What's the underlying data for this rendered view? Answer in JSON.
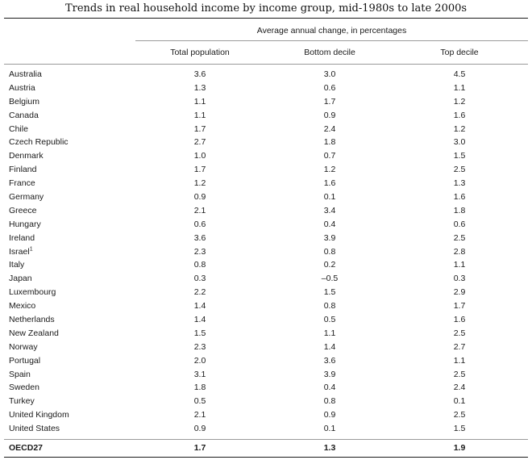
{
  "title": "Trends in real household income by income group, mid-1980s to late 2000s",
  "span_header": "Average annual change, in percentages",
  "columns": [
    "Total population",
    "Bottom decile",
    "Top decile"
  ],
  "rows": [
    {
      "country": "Australia",
      "values": [
        "3.6",
        "3.0",
        "4.5"
      ]
    },
    {
      "country": "Austria",
      "values": [
        "1.3",
        "0.6",
        "1.1"
      ]
    },
    {
      "country": "Belgium",
      "values": [
        "1.1",
        "1.7",
        "1.2"
      ]
    },
    {
      "country": "Canada",
      "values": [
        "1.1",
        "0.9",
        "1.6"
      ]
    },
    {
      "country": "Chile",
      "values": [
        "1.7",
        "2.4",
        "1.2"
      ]
    },
    {
      "country": "Czech Republic",
      "values": [
        "2.7",
        "1.8",
        "3.0"
      ]
    },
    {
      "country": "Denmark",
      "values": [
        "1.0",
        "0.7",
        "1.5"
      ]
    },
    {
      "country": "Finland",
      "values": [
        "1.7",
        "1.2",
        "2.5"
      ]
    },
    {
      "country": "France",
      "values": [
        "1.2",
        "1.6",
        "1.3"
      ]
    },
    {
      "country": "Germany",
      "values": [
        "0.9",
        "0.1",
        "1.6"
      ]
    },
    {
      "country": "Greece",
      "values": [
        "2.1",
        "3.4",
        "1.8"
      ]
    },
    {
      "country": "Hungary",
      "values": [
        "0.6",
        "0.4",
        "0.6"
      ]
    },
    {
      "country": "Ireland",
      "values": [
        "3.6",
        "3.9",
        "2.5"
      ]
    },
    {
      "country": "Israel",
      "note": "1",
      "values": [
        "2.3",
        "0.8",
        "2.8"
      ]
    },
    {
      "country": "Italy",
      "values": [
        "0.8",
        "0.2",
        "1.1"
      ]
    },
    {
      "country": "Japan",
      "values": [
        "0.3",
        "–0.5",
        "0.3"
      ]
    },
    {
      "country": "Luxembourg",
      "values": [
        "2.2",
        "1.5",
        "2.9"
      ]
    },
    {
      "country": "Mexico",
      "values": [
        "1.4",
        "0.8",
        "1.7"
      ]
    },
    {
      "country": "Netherlands",
      "values": [
        "1.4",
        "0.5",
        "1.6"
      ]
    },
    {
      "country": "New Zealand",
      "values": [
        "1.5",
        "1.1",
        "2.5"
      ]
    },
    {
      "country": "Norway",
      "values": [
        "2.3",
        "1.4",
        "2.7"
      ]
    },
    {
      "country": "Portugal",
      "values": [
        "2.0",
        "3.6",
        "1.1"
      ]
    },
    {
      "country": "Spain",
      "values": [
        "3.1",
        "3.9",
        "2.5"
      ]
    },
    {
      "country": "Sweden",
      "values": [
        "1.8",
        "0.4",
        "2.4"
      ]
    },
    {
      "country": "Turkey",
      "values": [
        "0.5",
        "0.8",
        "0.1"
      ]
    },
    {
      "country": "United Kingdom",
      "values": [
        "2.1",
        "0.9",
        "2.5"
      ]
    },
    {
      "country": "United States",
      "values": [
        "0.9",
        "0.1",
        "1.5"
      ]
    }
  ],
  "total": {
    "country": "OECD27",
    "values": [
      "1.7",
      "1.3",
      "1.9"
    ]
  }
}
